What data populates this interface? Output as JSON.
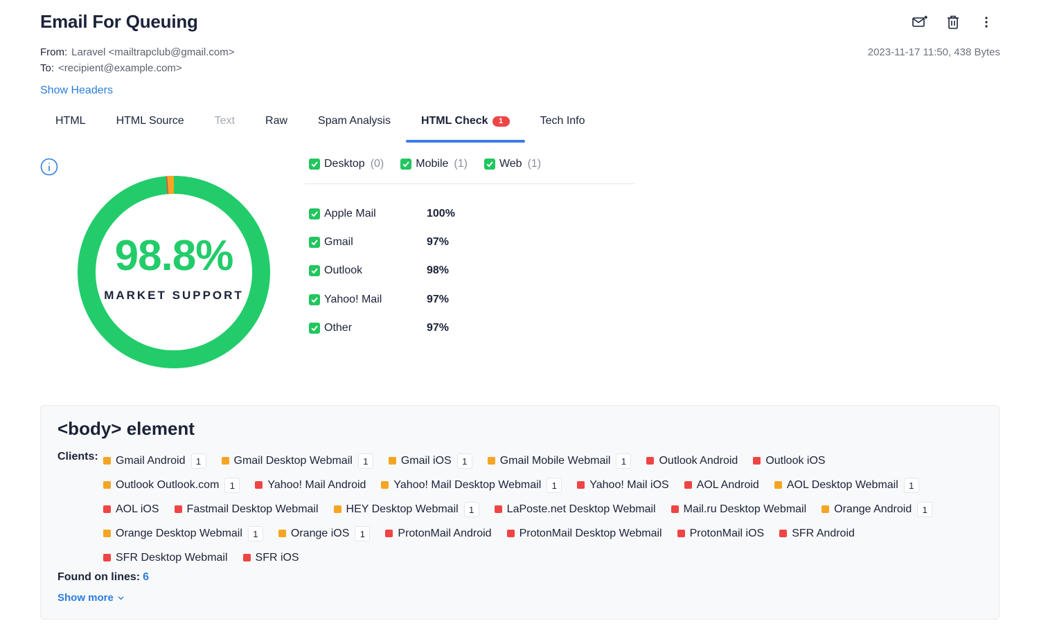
{
  "email": {
    "subject": "Email For Queuing",
    "from_label": "From:",
    "from_value": "Laravel <mailtrapclub@gmail.com>",
    "to_label": "To:",
    "to_value": "<recipient@example.com>",
    "date_size": "2023-11-17 11:50, 438 Bytes",
    "show_headers": "Show Headers"
  },
  "actions": [
    {
      "icon": "forward-mail-icon"
    },
    {
      "icon": "trash-icon"
    },
    {
      "icon": "more-vertical-icon"
    }
  ],
  "tabs": [
    {
      "label": "HTML",
      "state": "normal"
    },
    {
      "label": "HTML Source",
      "state": "normal"
    },
    {
      "label": "Text",
      "state": "disabled"
    },
    {
      "label": "Raw",
      "state": "normal"
    },
    {
      "label": "Spam Analysis",
      "state": "normal"
    },
    {
      "label": "HTML Check",
      "state": "active",
      "badge": "1"
    },
    {
      "label": "Tech Info",
      "state": "normal"
    }
  ],
  "support": {
    "percent": "98.8%",
    "percent_value": 98.8,
    "label": "MARKET SUPPORT",
    "colors": {
      "supported": "#22cc6a",
      "partial": "#f5a524",
      "unsupported": "#ef4444"
    }
  },
  "filters": [
    {
      "label": "Desktop",
      "count": "(0)",
      "checked": true
    },
    {
      "label": "Mobile",
      "count": "(1)",
      "checked": true
    },
    {
      "label": "Web",
      "count": "(1)",
      "checked": true
    }
  ],
  "clients": [
    {
      "name": "Apple Mail",
      "percent": "100%",
      "checked": true
    },
    {
      "name": "Gmail",
      "percent": "97%",
      "checked": true
    },
    {
      "name": "Outlook",
      "percent": "98%",
      "checked": true
    },
    {
      "name": "Yahoo! Mail",
      "percent": "97%",
      "checked": true
    },
    {
      "name": "Other",
      "percent": "97%",
      "checked": true
    }
  ],
  "issue": {
    "title": "<body> element",
    "clients_label": "Clients:",
    "chips": [
      {
        "name": "Gmail Android",
        "status": "orange",
        "count": "1"
      },
      {
        "name": "Gmail Desktop Webmail",
        "status": "orange",
        "count": "1"
      },
      {
        "name": "Gmail iOS",
        "status": "orange",
        "count": "1"
      },
      {
        "name": "Gmail Mobile Webmail",
        "status": "orange",
        "count": "1"
      },
      {
        "name": "Outlook Android",
        "status": "red"
      },
      {
        "name": "Outlook iOS",
        "status": "red"
      },
      {
        "name": "Outlook Outlook.com",
        "status": "orange",
        "count": "1"
      },
      {
        "name": "Yahoo! Mail Android",
        "status": "red"
      },
      {
        "name": "Yahoo! Mail Desktop Webmail",
        "status": "orange",
        "count": "1"
      },
      {
        "name": "Yahoo! Mail iOS",
        "status": "red"
      },
      {
        "name": "AOL Android",
        "status": "red"
      },
      {
        "name": "AOL Desktop Webmail",
        "status": "orange",
        "count": "1"
      },
      {
        "name": "AOL iOS",
        "status": "red"
      },
      {
        "name": "Fastmail Desktop Webmail",
        "status": "red"
      },
      {
        "name": "HEY Desktop Webmail",
        "status": "orange",
        "count": "1"
      },
      {
        "name": "LaPoste.net Desktop Webmail",
        "status": "red"
      },
      {
        "name": "Mail.ru Desktop Webmail",
        "status": "red"
      },
      {
        "name": "Orange Android",
        "status": "orange",
        "count": "1"
      },
      {
        "name": "Orange Desktop Webmail",
        "status": "orange",
        "count": "1"
      },
      {
        "name": "Orange iOS",
        "status": "orange",
        "count": "1"
      },
      {
        "name": "ProtonMail Android",
        "status": "red"
      },
      {
        "name": "ProtonMail Desktop Webmail",
        "status": "red"
      },
      {
        "name": "ProtonMail iOS",
        "status": "red"
      },
      {
        "name": "SFR Android",
        "status": "red"
      },
      {
        "name": "SFR Desktop Webmail",
        "status": "red"
      },
      {
        "name": "SFR iOS",
        "status": "red"
      }
    ],
    "found_label": "Found on lines:",
    "found_value": "6",
    "show_more": "Show more"
  }
}
